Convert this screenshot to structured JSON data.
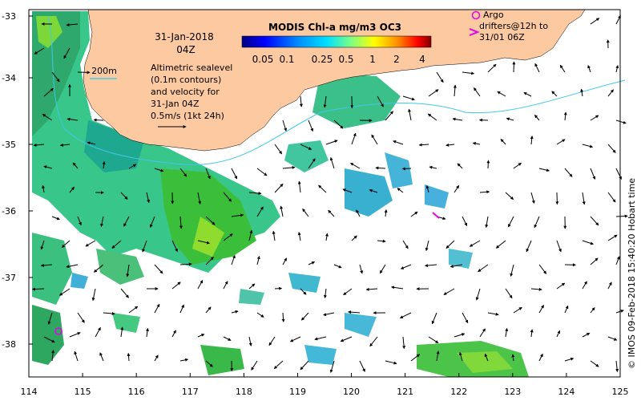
{
  "map": {
    "date_line1": "31-Jan-2018",
    "date_line2": "04Z",
    "depth_label": "200m",
    "sealevel_lines": [
      "Altimetric sealevel",
      "(0.1m contours)",
      "and velocity for",
      "31-Jan 04Z",
      "0.5m/s (1kt 24h)"
    ],
    "colorbar": {
      "title": "MODIS Chl-a mg/m3 OC3",
      "ticks": [
        "0.05",
        "0.1",
        "0.25",
        "0.5",
        "1",
        "2",
        "4"
      ],
      "colors": [
        "#00007f",
        "#0000ff",
        "#0080ff",
        "#00ffff",
        "#80ff80",
        "#ffff00",
        "#ff8000",
        "#ff0000",
        "#7f0000"
      ]
    },
    "argo_label_lines": [
      "Argo",
      "drifters@12h to",
      "31/01 06Z"
    ],
    "side_label": "© IMOS 09-Feb-2018 15:40:20 Hobart time",
    "x_ticks": [
      "114",
      "115",
      "116",
      "117",
      "118",
      "119",
      "120",
      "121",
      "122",
      "123",
      "124",
      "125"
    ],
    "y_ticks": [
      "-33",
      "-34",
      "-35",
      "-36",
      "-37",
      "-38"
    ],
    "land_color": "#fcc9a0",
    "argo_color": "#e600e6",
    "depth_contour_color": "#40c8e8"
  }
}
